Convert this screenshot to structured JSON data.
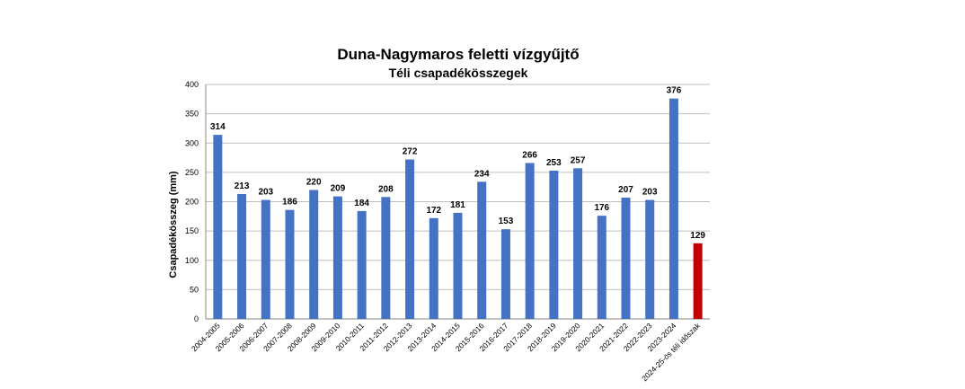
{
  "chart_data": {
    "type": "bar",
    "title": "Duna-Nagymaros feletti vízgyűjtő",
    "subtitle": "Téli csapadékösszegek",
    "ylabel": "Csapadékösszeg (mm)",
    "xlabel": "",
    "ylim": [
      0,
      400
    ],
    "yticks": [
      0,
      50,
      100,
      150,
      200,
      250,
      300,
      350,
      400
    ],
    "grid": true,
    "categories": [
      "2004-2005",
      "2005-2006",
      "2006-2007",
      "2007-2008",
      "2008-2009",
      "2009-2010",
      "2010-2011",
      "2011-2012",
      "2012-2013",
      "2013-2014",
      "2014-2015",
      "2015-2016",
      "2016-2017",
      "2017-2018",
      "2018-2019",
      "2019-2020",
      "2020-2021",
      "2021-2022",
      "2022-2023",
      "2023-2024",
      "2024-25-ös téli időszak"
    ],
    "values": [
      314,
      213,
      203,
      186,
      220,
      209,
      184,
      208,
      272,
      172,
      181,
      234,
      153,
      266,
      253,
      257,
      176,
      207,
      203,
      376,
      129
    ],
    "colors": {
      "default": "#4472c4",
      "highlight": "#c00000"
    },
    "highlight_index": 20
  }
}
